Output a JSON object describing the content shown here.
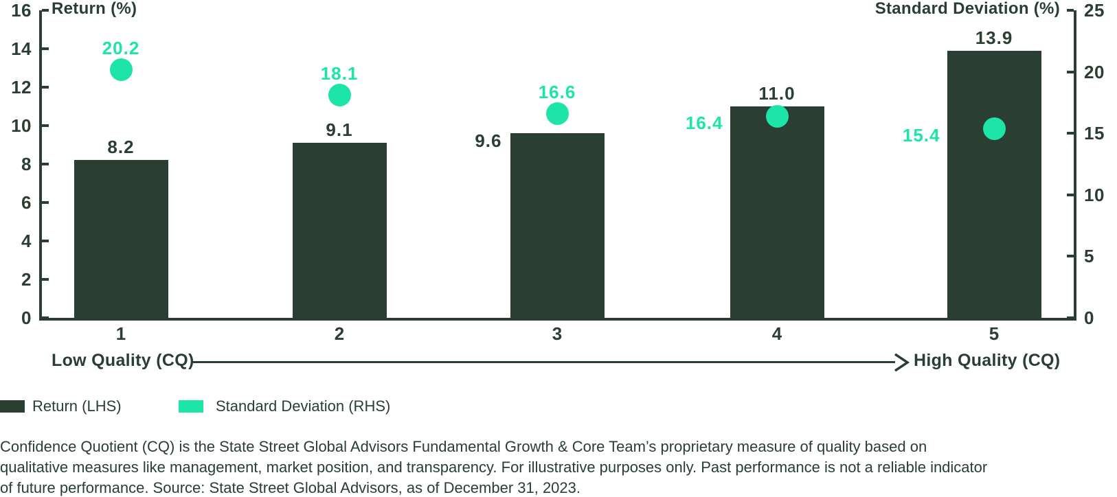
{
  "chart_data": {
    "type": "bar",
    "title": "",
    "categories": [
      "1",
      "2",
      "3",
      "4",
      "5"
    ],
    "series": [
      {
        "name": "Return (LHS)",
        "type": "bar",
        "axis": "left",
        "values": [
          8.2,
          9.1,
          9.6,
          11.0,
          13.9
        ]
      },
      {
        "name": "Standard Deviation (RHS)",
        "type": "scatter",
        "axis": "right",
        "values": [
          20.2,
          18.1,
          16.6,
          16.4,
          15.4
        ]
      }
    ],
    "left_axis": {
      "title": "Return (%)",
      "min": 0,
      "max": 16,
      "ticks": [
        0,
        2,
        4,
        6,
        8,
        10,
        12,
        14,
        16
      ]
    },
    "right_axis": {
      "title": "Standard Deviation (%)",
      "min": 0,
      "max": 25,
      "ticks": [
        0,
        5,
        10,
        15,
        20,
        25
      ]
    },
    "x_axis": {
      "low_label": "Low Quality (CQ)",
      "high_label": "High Quality (CQ)"
    },
    "legend": [
      {
        "label": "Return (LHS)",
        "color": "#2A3E33"
      },
      {
        "label": "Standard Deviation (RHS)",
        "color": "#1DE5A7"
      }
    ],
    "colors": {
      "bar": "#2A3E33",
      "dot": "#1DE5A7",
      "axis": "#2A3E33",
      "text": "#2A3E33"
    },
    "layout": {
      "grid": false,
      "legend_position": "bottom-left",
      "bar_label_pos": [
        "above",
        "above",
        "left",
        "above",
        "above"
      ],
      "dot_label_pos": [
        "above",
        "above",
        "above",
        "left",
        "left"
      ]
    }
  },
  "footnote": {
    "lines": [
      "Confidence Quotient (CQ) is the State Street Global Advisors Fundamental Growth & Core Team’s proprietary measure of quality based on",
      "qualitative measures like management, market position, and transparency. For illustrative purposes only. Past performance is not a reliable indicator",
      "of future performance. Source: State Street Global Advisors, as of December 31, 2023."
    ]
  }
}
